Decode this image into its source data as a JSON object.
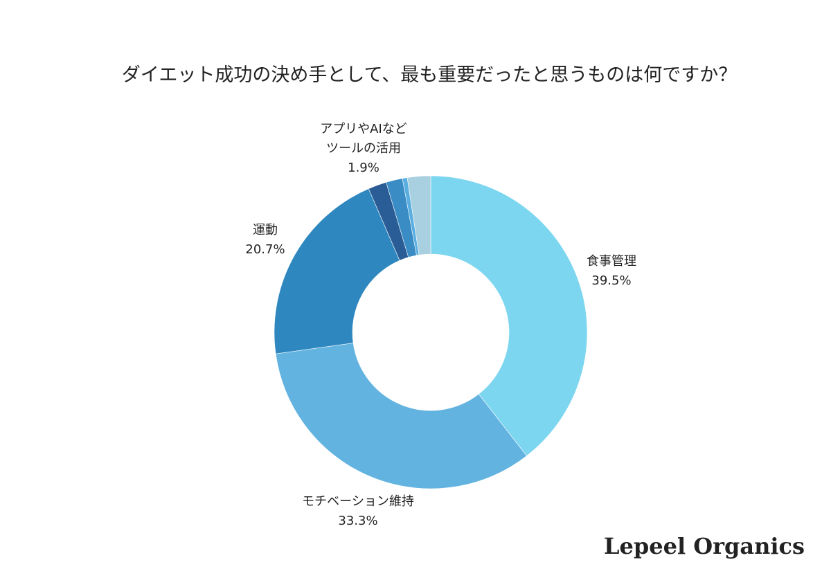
{
  "chart_data": {
    "type": "donut",
    "title": "ダイエット成功の決め手として、最も重要だったと思うものは何ですか？",
    "categories": [
      "食事管理",
      "モチベーション維持",
      "運動",
      "アプリやAIなど\nツールの活用",
      null,
      null,
      null
    ],
    "values": [
      39.5,
      33.3,
      20.7,
      1.9,
      1.7,
      0.5,
      2.4
    ],
    "value_labels": [
      "39.5%",
      "33.3%",
      "20.7%",
      "1.9%",
      null,
      null,
      null
    ],
    "colors": [
      "#7dd6f0",
      "#62b3e0",
      "#2e88bf",
      "#2a5c96",
      "#3a8cc4",
      "#5aaee0",
      "#a9d0e0"
    ]
  },
  "brand": "Lepeel Organics"
}
